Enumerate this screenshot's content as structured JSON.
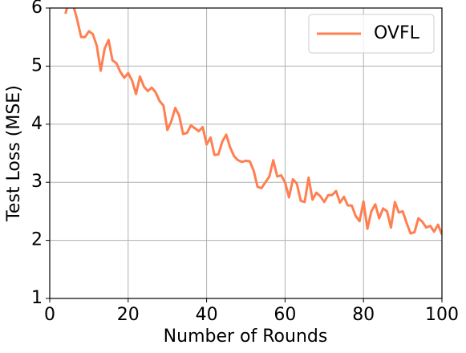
{
  "chart_data": {
    "type": "line",
    "xlabel": "Number of Rounds",
    "ylabel": "Test Loss (MSE)",
    "x": [
      4,
      5,
      6,
      7,
      8,
      9,
      10,
      11,
      12,
      13,
      14,
      15,
      16,
      17,
      18,
      19,
      20,
      21,
      22,
      23,
      24,
      25,
      26,
      27,
      28,
      29,
      30,
      31,
      32,
      33,
      34,
      35,
      36,
      37,
      38,
      39,
      40,
      41,
      42,
      43,
      44,
      45,
      46,
      47,
      48,
      49,
      50,
      51,
      52,
      53,
      54,
      55,
      56,
      57,
      58,
      59,
      60,
      61,
      62,
      63,
      64,
      65,
      66,
      67,
      68,
      69,
      70,
      71,
      72,
      73,
      74,
      75,
      76,
      77,
      78,
      79,
      80,
      81,
      82,
      83,
      84,
      85,
      86,
      87,
      88,
      89,
      90,
      91,
      92,
      93,
      94,
      95,
      96,
      97,
      98,
      99,
      100
    ],
    "series": [
      {
        "name": "OVFL",
        "color": "#ff7f50",
        "values": [
          5.9,
          6.15,
          6.05,
          5.8,
          5.5,
          5.5,
          5.6,
          5.55,
          5.35,
          4.92,
          5.3,
          5.45,
          5.1,
          5.05,
          4.9,
          4.8,
          4.88,
          4.75,
          4.52,
          4.82,
          4.65,
          4.57,
          4.63,
          4.55,
          4.4,
          4.32,
          3.9,
          4.05,
          4.28,
          4.15,
          3.83,
          3.85,
          3.98,
          3.93,
          3.88,
          3.95,
          3.65,
          3.77,
          3.47,
          3.48,
          3.7,
          3.82,
          3.6,
          3.45,
          3.38,
          3.35,
          3.37,
          3.36,
          3.2,
          2.92,
          2.9,
          3.0,
          3.1,
          3.38,
          3.1,
          3.12,
          3.0,
          2.74,
          3.05,
          2.98,
          2.68,
          2.66,
          3.08,
          2.7,
          2.82,
          2.76,
          2.66,
          2.78,
          2.78,
          2.85,
          2.65,
          2.75,
          2.6,
          2.6,
          2.42,
          2.33,
          2.67,
          2.2,
          2.5,
          2.62,
          2.38,
          2.55,
          2.5,
          2.22,
          2.66,
          2.48,
          2.5,
          2.3,
          2.12,
          2.14,
          2.38,
          2.32,
          2.22,
          2.25,
          2.15,
          2.27,
          2.1
        ]
      }
    ],
    "xlim": [
      0,
      100
    ],
    "xticks": [
      0,
      20,
      40,
      60,
      80,
      100
    ],
    "ylim": [
      1,
      6
    ],
    "yticks": [
      1,
      2,
      3,
      4,
      5,
      6
    ],
    "grid": true,
    "legend": "upper right"
  }
}
